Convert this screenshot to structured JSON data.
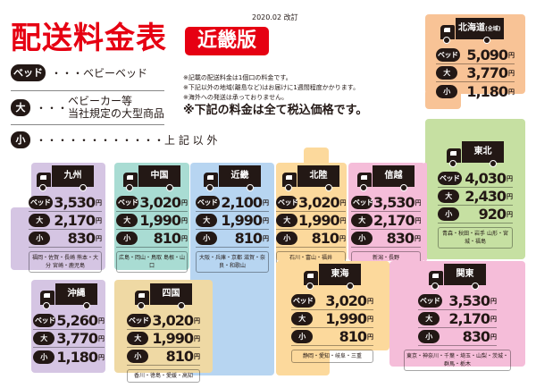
{
  "header": {
    "title": "配送料金表",
    "edition": "近畿版",
    "revised": "2020.02 改訂"
  },
  "legend": [
    {
      "badge": "ベッド",
      "dots": "・・・",
      "text": "ベビーベッド"
    },
    {
      "badge": "大",
      "dots": "・・・",
      "text": "ベビーカー等",
      "text2": "当社規定の大型商品"
    },
    {
      "badge": "小",
      "dots": "・・・・・・・・・・・・",
      "text": "上 記 以 外"
    }
  ],
  "notes": [
    "※記載の配送料金は1個口の料金です。",
    "※下記以外の地域(離島など)はお届けに1週間程度かかります。",
    "※海外への発送は承っておりません。"
  ],
  "notes_emphasis": "※下記の料金は全て税込価格です。",
  "labels": {
    "bed": "ベッド",
    "large": "大",
    "small": "小",
    "yen": "円"
  },
  "regions": [
    {
      "name": "北海道",
      "sub": "(全域)",
      "bed": "5,090",
      "large": "3,770",
      "small": "1,180",
      "area": "",
      "color": "#f8c396"
    },
    {
      "name": "東北",
      "bed": "4,030",
      "large": "2,430",
      "small": "920",
      "area": "青森・秋田・岩手 山形・宮城・福島",
      "color": "#c6e0a2"
    },
    {
      "name": "九州",
      "bed": "3,530",
      "large": "2,170",
      "small": "830",
      "area": "福岡・佐賀・長崎 熊本・大分 宮崎・鹿児島",
      "color": "#d5c5e3"
    },
    {
      "name": "中国",
      "bed": "3,020",
      "large": "1,990",
      "small": "810",
      "area": "広島・岡山・鳥取 島根・山口",
      "color": "#a9dcd3"
    },
    {
      "name": "近畿",
      "bed": "2,100",
      "large": "1,990",
      "small": "810",
      "area": "大阪・兵庫・京都 滋賀・奈良・和歌山",
      "color": "#b7d5f1"
    },
    {
      "name": "北陸",
      "bed": "3,020",
      "large": "1,990",
      "small": "810",
      "area": "石川・富山・福井",
      "color": "#fcd99c"
    },
    {
      "name": "信越",
      "bed": "3,530",
      "large": "2,170",
      "small": "830",
      "area": "新潟・長野",
      "color": "#f5bdd9"
    },
    {
      "name": "東海",
      "bed": "3,020",
      "large": "1,990",
      "small": "810",
      "area": "静岡・愛知・岐阜・三重",
      "color": "#fcd99c"
    },
    {
      "name": "関東",
      "bed": "3,530",
      "large": "2,170",
      "small": "830",
      "area": "東京・神奈川・千葉・埼玉・山梨・茨城・群馬・栃木",
      "color": "#f5bdd9"
    },
    {
      "name": "沖縄",
      "bed": "5,260",
      "large": "3,770",
      "small": "1,180",
      "area": "",
      "color": "#d5c5e3"
    },
    {
      "name": "四国",
      "bed": "3,020",
      "large": "1,990",
      "small": "810",
      "area": "香川・徳島・愛媛・高知",
      "color": "#efd9a4"
    }
  ]
}
